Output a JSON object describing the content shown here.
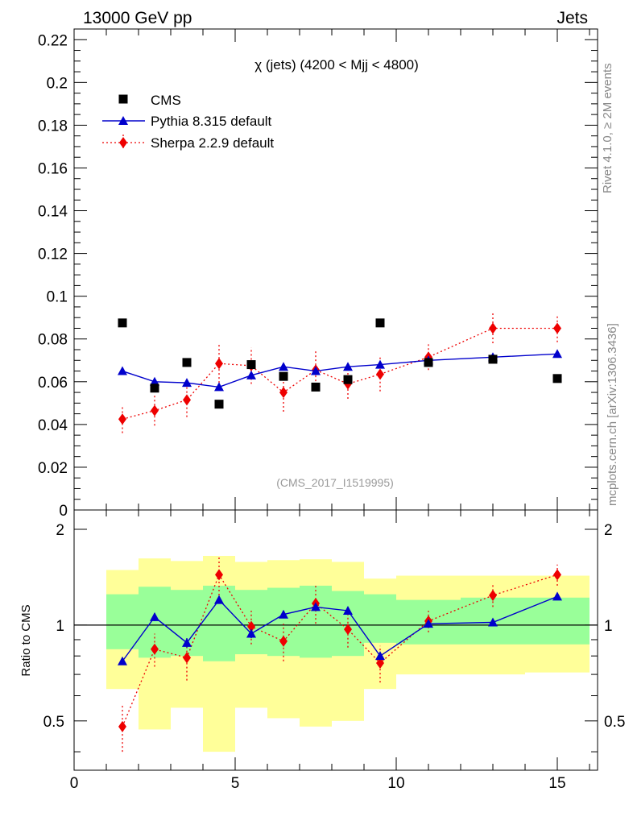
{
  "header": {
    "left_title": "13000 GeV pp",
    "right_title": "Jets",
    "side_label_top": "Rivet 4.1.0, ≥ 2M events",
    "side_label_bottom": "mcplots.cern.ch [arXiv:1306.3436]"
  },
  "chart_data": [
    {
      "type": "scatter",
      "title": "χ (jets) (4200 < Mjj < 4800)",
      "watermark": "(CMS_2017_I1519995)",
      "xlabel": "",
      "ylabel": "",
      "xlim": [
        0,
        16.25
      ],
      "ylim": [
        0,
        0.225
      ],
      "yticks": [
        0,
        0.02,
        0.04,
        0.06,
        0.08,
        0.1,
        0.12,
        0.14,
        0.16,
        0.18,
        0.2,
        0.22
      ],
      "ytick_labels": [
        "0",
        "0.02",
        "0.04",
        "0.06",
        "0.08",
        "0.1",
        "0.12",
        "0.14",
        "0.16",
        "0.18",
        "0.2",
        "0.22"
      ],
      "legend_position": "top-left",
      "series": [
        {
          "name": "CMS",
          "style": "black-square-marker",
          "color": "#000000",
          "x": [
            1.5,
            2.5,
            3.5,
            4.5,
            5.5,
            6.5,
            7.5,
            8.5,
            9.5,
            11.0,
            13.0,
            15.0
          ],
          "values": [
            0.0875,
            0.057,
            0.069,
            0.0495,
            0.068,
            0.0625,
            0.0575,
            0.061,
            0.0875,
            0.069,
            0.0705,
            0.0615
          ]
        },
        {
          "name": "Pythia 8.315 default",
          "style": "blue-solid-line-triangle",
          "color": "#0000cc",
          "x": [
            1.5,
            2.5,
            3.5,
            4.5,
            5.5,
            6.5,
            7.5,
            8.5,
            9.5,
            11.0,
            13.0,
            15.0
          ],
          "values": [
            0.065,
            0.06,
            0.0595,
            0.0575,
            0.063,
            0.067,
            0.065,
            0.067,
            0.068,
            0.07,
            0.0715,
            0.073
          ],
          "errors": [
            0.0015,
            0.0015,
            0.0015,
            0.0012,
            0.0015,
            0.0015,
            0.0015,
            0.0015,
            0.0012,
            0.0012,
            0.001,
            0.001
          ]
        },
        {
          "name": "Sherpa 2.2.9 default",
          "style": "red-dotted-line-diamond",
          "color": "#ee0000",
          "x": [
            1.5,
            2.5,
            3.5,
            4.5,
            5.5,
            6.5,
            7.5,
            8.5,
            9.5,
            11.0,
            13.0,
            15.0
          ],
          "values": [
            0.0425,
            0.0465,
            0.0515,
            0.0685,
            0.0675,
            0.055,
            0.0655,
            0.059,
            0.0635,
            0.0715,
            0.085,
            0.085
          ],
          "errors": [
            0.0065,
            0.007,
            0.008,
            0.009,
            0.0085,
            0.009,
            0.009,
            0.007,
            0.008,
            0.006,
            0.007,
            0.0065
          ]
        }
      ]
    },
    {
      "type": "scatter",
      "title": "",
      "xlabel": "",
      "ylabel": "Ratio to CMS",
      "xlim": [
        0,
        16.25
      ],
      "ylim": [
        0.35,
        2.3
      ],
      "log_y": true,
      "xticks": [
        0,
        5,
        10,
        15
      ],
      "yticks": [
        0.5,
        1,
        2
      ],
      "ytick_labels": [
        "0.5",
        "1",
        "2"
      ],
      "reference_line": 1,
      "bands": {
        "edges": [
          1,
          2,
          3,
          4,
          5,
          6,
          7,
          8,
          9,
          10,
          12,
          14,
          16
        ],
        "inner_low": [
          0.84,
          0.79,
          0.8,
          0.77,
          0.81,
          0.8,
          0.79,
          0.8,
          0.88,
          0.87,
          0.87,
          0.87
        ],
        "inner_high": [
          1.25,
          1.32,
          1.29,
          1.33,
          1.29,
          1.31,
          1.33,
          1.28,
          1.25,
          1.2,
          1.22,
          1.22
        ],
        "outer_low": [
          0.63,
          0.47,
          0.55,
          0.4,
          0.55,
          0.51,
          0.48,
          0.5,
          0.63,
          0.7,
          0.7,
          0.71
        ],
        "outer_high": [
          1.49,
          1.62,
          1.59,
          1.65,
          1.58,
          1.6,
          1.61,
          1.58,
          1.4,
          1.43,
          1.43,
          1.43
        ],
        "inner_color": "#99ff99",
        "outer_color": "#ffff99"
      },
      "series": [
        {
          "name": "Pythia 8.315 default",
          "color": "#0000cc",
          "x": [
            1.5,
            2.5,
            3.5,
            4.5,
            5.5,
            6.5,
            7.5,
            8.5,
            9.5,
            11.0,
            13.0,
            15.0
          ],
          "values": [
            0.77,
            1.06,
            0.88,
            1.2,
            0.94,
            1.08,
            1.14,
            1.11,
            0.8,
            1.01,
            1.02,
            1.23
          ],
          "errors": [
            0.02,
            0.03,
            0.03,
            0.03,
            0.03,
            0.03,
            0.03,
            0.03,
            0.02,
            0.02,
            0.02,
            0.02
          ]
        },
        {
          "name": "Sherpa 2.2.9 default",
          "color": "#ee0000",
          "x": [
            1.5,
            2.5,
            3.5,
            4.5,
            5.5,
            6.5,
            7.5,
            8.5,
            9.5,
            11.0,
            13.0,
            15.0
          ],
          "values": [
            0.48,
            0.84,
            0.79,
            1.44,
            0.99,
            0.89,
            1.17,
            0.97,
            0.76,
            1.03,
            1.24,
            1.44
          ],
          "errors": [
            0.08,
            0.1,
            0.12,
            0.2,
            0.12,
            0.12,
            0.16,
            0.12,
            0.1,
            0.08,
            0.1,
            0.11
          ]
        }
      ]
    }
  ]
}
